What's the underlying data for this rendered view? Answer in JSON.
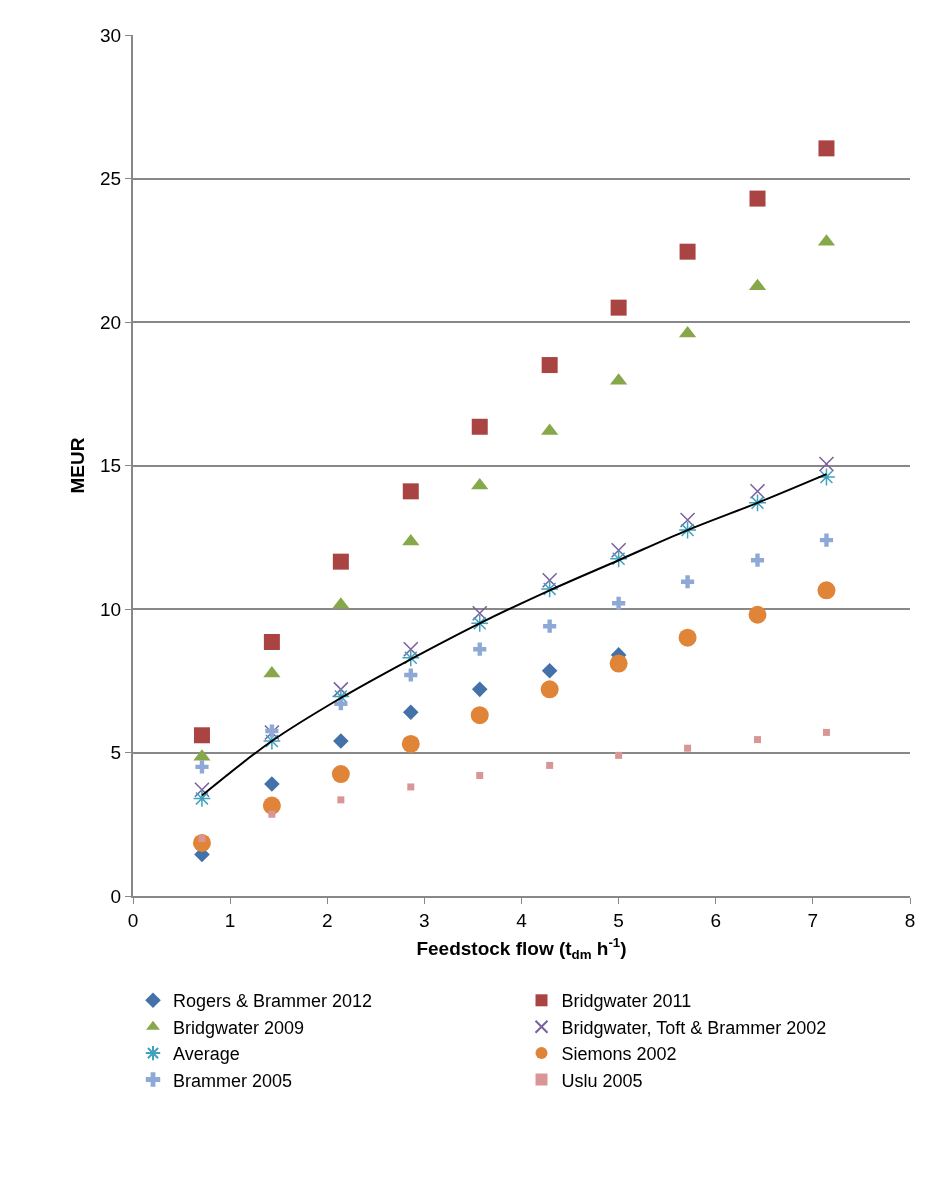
{
  "chart_data": {
    "type": "scatter",
    "xlabel": "Feedstock flow (t$_{dm}$ h$^{-1}$)",
    "ylabel": "MEUR",
    "x": [
      0.71,
      1.43,
      2.14,
      2.86,
      3.57,
      4.29,
      5,
      5.71,
      6.43,
      7.14
    ],
    "xlim": [
      0,
      8
    ],
    "xticks": [
      0,
      1,
      2,
      3,
      4,
      5,
      6,
      7,
      8
    ],
    "ylim": [
      0,
      30
    ],
    "yticks": [
      0,
      5,
      10,
      15,
      20,
      25,
      30
    ],
    "grid": "y",
    "legend": "bottom",
    "series": [
      {
        "name": "Rogers & Brammer 2012",
        "color": "#4472a8",
        "marker": "diamond",
        "values": [
          1.45,
          3.9,
          5.4,
          6.4,
          7.2,
          7.85,
          8.4,
          null,
          null,
          null
        ]
      },
      {
        "name": "Bridgwater 2011",
        "color": "#a94442",
        "marker": "square",
        "values": [
          5.6,
          8.85,
          11.65,
          14.1,
          16.35,
          18.5,
          20.5,
          22.45,
          24.3,
          26.05
        ]
      },
      {
        "name": "Bridgwater 2009",
        "color": "#86a84a",
        "marker": "triangle",
        "values": [
          4.85,
          7.75,
          10.15,
          12.35,
          14.3,
          16.2,
          17.95,
          19.6,
          21.25,
          22.8
        ]
      },
      {
        "name": "Bridgwater, Toft & Brammer 2002",
        "color": "#7b5f9e",
        "marker": "cross",
        "values": [
          3.7,
          5.7,
          7.2,
          8.6,
          9.85,
          11.0,
          12.05,
          13.1,
          14.1,
          15.05
        ]
      },
      {
        "name": "Average",
        "color": "#3fa3bd",
        "marker": "cross",
        "values": [
          3.4,
          5.4,
          6.95,
          8.3,
          9.5,
          10.7,
          11.75,
          12.75,
          13.7,
          14.6
        ]
      },
      {
        "name": "Siemons 2002",
        "color": "#e08438",
        "marker": "circle",
        "values": [
          1.85,
          3.15,
          4.25,
          5.3,
          6.3,
          7.2,
          8.1,
          9.0,
          9.8,
          10.65
        ]
      },
      {
        "name": "Brammer 2005",
        "color": "#8ea9d6",
        "values": [
          4.5,
          5.75,
          6.7,
          7.7,
          8.6,
          9.4,
          10.2,
          10.95,
          11.7,
          12.4
        ]
      },
      {
        "name": "Uslu 2005",
        "color": "#d99694",
        "marker": "square",
        "values": [
          2.0,
          2.85,
          3.35,
          3.8,
          4.2,
          4.55,
          4.9,
          5.15,
          5.45,
          5.7
        ]
      },
      {
        "type": "line",
        "color": "#000000",
        "marker": "none",
        "line_style": "solid",
        "values": [
          3.5,
          5.4,
          6.9,
          8.25,
          9.5,
          10.65,
          11.7,
          12.75,
          13.7,
          14.7
        ]
      }
    ]
  }
}
